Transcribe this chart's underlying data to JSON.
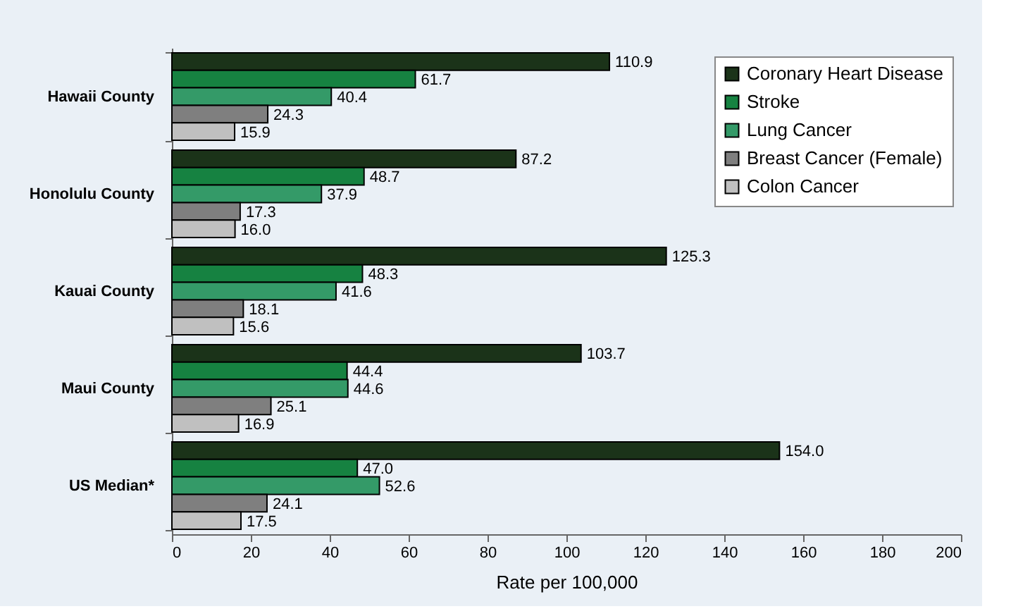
{
  "chart_data": {
    "type": "bar",
    "orientation": "horizontal",
    "xlabel": "Rate per 100,000",
    "categories": [
      "Hawaii County",
      "Honolulu County",
      "Kauai County",
      "Maui County",
      "US Median*"
    ],
    "series": [
      {
        "name": "Coronary Heart Disease",
        "color": "#1b3319",
        "values": [
          110.9,
          87.2,
          125.3,
          103.7,
          154.0
        ],
        "value_labels": [
          "110.9",
          "87.2",
          "125.3",
          "103.7",
          "154.0"
        ]
      },
      {
        "name": "Stroke",
        "color": "#168241",
        "values": [
          61.7,
          48.7,
          48.3,
          44.4,
          47.0
        ],
        "value_labels": [
          "61.7",
          "48.7",
          "48.3",
          "44.4",
          "47.0"
        ]
      },
      {
        "name": "Lung Cancer",
        "color": "#349a68",
        "values": [
          40.4,
          37.9,
          41.6,
          44.6,
          52.6
        ],
        "value_labels": [
          "40.4",
          "37.9",
          "41.6",
          "44.6",
          "52.6"
        ]
      },
      {
        "name": "Breast Cancer (Female)",
        "color": "#7f7f7f",
        "values": [
          24.3,
          17.3,
          18.1,
          25.1,
          24.1
        ],
        "value_labels": [
          "24.3",
          "17.3",
          "18.1",
          "25.1",
          "24.1"
        ]
      },
      {
        "name": "Colon Cancer",
        "color": "#c0c0c0",
        "values": [
          15.9,
          16.0,
          15.6,
          16.9,
          17.5
        ],
        "value_labels": [
          "15.9",
          "16.0",
          "15.6",
          "16.9",
          "17.5"
        ]
      }
    ],
    "xlim": [
      0,
      200
    ],
    "xticks": [
      0,
      20,
      40,
      60,
      80,
      100,
      120,
      140,
      160,
      180,
      200
    ],
    "grid": false,
    "legend": "top right"
  }
}
